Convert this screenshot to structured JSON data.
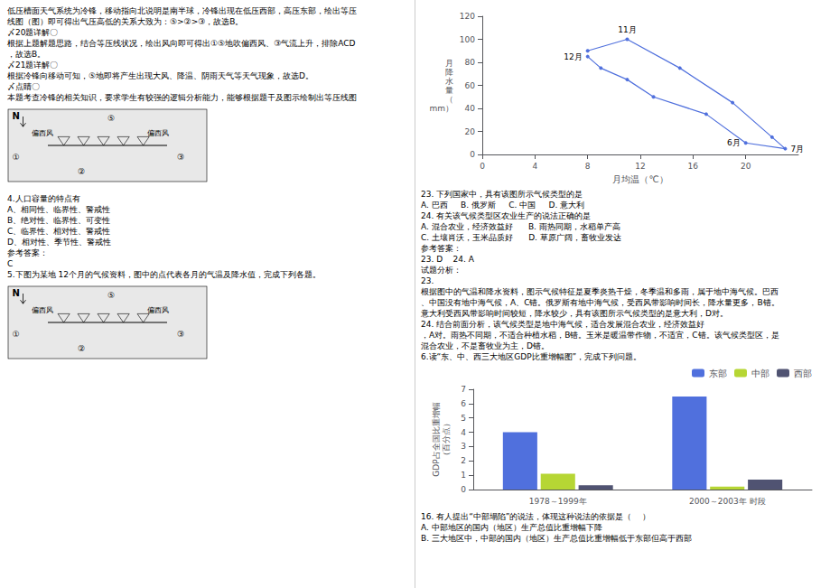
{
  "chart_data": [
    {
      "type": "line",
      "xlabel": "月均温（℃）",
      "ylabel": "月\n降\n水\n量\n（\nmm）",
      "x": [
        8,
        9,
        11,
        13,
        17,
        20,
        23,
        22,
        19,
        15,
        11,
        8
      ],
      "values": [
        85,
        75,
        65,
        50,
        35,
        10,
        5,
        15,
        45,
        75,
        100,
        90
      ],
      "marker": "circle",
      "line_style": "solid",
      "xlim": [
        0,
        24
      ],
      "ylim": [
        0,
        120
      ],
      "xticks": [
        0,
        4,
        8,
        12,
        16,
        20
      ],
      "yticks": [
        0,
        20,
        40,
        60,
        80,
        100,
        120
      ],
      "grid": false,
      "annotations": [
        {
          "text": "12月",
          "x": 8,
          "y": 85
        },
        {
          "text": "11月",
          "x": 11,
          "y": 100
        },
        {
          "text": "6月",
          "x": 20,
          "y": 10
        },
        {
          "text": "7月",
          "x": 23,
          "y": 5
        }
      ]
    },
    {
      "type": "bar",
      "ylabel": "GDP占全国比重增幅\n（百分点）",
      "categories": [
        "1978～1999年",
        "2000～2003年 时段"
      ],
      "series": [
        {
          "name": "东部",
          "values": [
            4.0,
            6.5
          ]
        },
        {
          "name": "中部",
          "values": [
            1.1,
            0.2
          ]
        },
        {
          "name": "西部",
          "values": [
            0.3,
            0.7
          ]
        }
      ],
      "ylim": [
        0,
        7
      ],
      "yticks": [
        0,
        1,
        2,
        3,
        4,
        5,
        6,
        7
      ],
      "grid": false,
      "legend": "upper right"
    }
  ],
  "page_texts": [
    [
      "低压槽面天气系统为冷锋，移动指向北说明是南半球，冷锋出现在低压西部，高压东部，绘出等压",
      "线图（图）即可得出气压高低的关系大致为：⑤>②>③，故选B。",
      "〆20题详解〇",
      "根据上题解题思路，结合等压线状况，绘出风向即可得出①⑤地吹偏西风、③气流上升，排除ACD",
      "，故选B。",
      "〆21题详解〇",
      "根据冷锋向移动可知，⑤地即将产生出现大风、降温、阴雨天气等天气现象，故选D。",
      "〆点睛〇",
      "本题考查冷锋的相关知识，要求学生有较强的逻辑分析能力，能够根据题干及图示绘制出等压线图"
    ],
    [
      "4.人口容量的特点有",
      "A、相同性、临界性、警戒性",
      "B、绝对性、临界性、可变性",
      "C、临界性、相对性、警戒性",
      "D、相对性、季节性、警戒性",
      "参考答案：",
      "C",
      "5.下图为某地 12个月的气候资料，图中的点代表各月的气温及降水值，完成下列各题。"
    ],
    [
      "23. 下列国家中，具有该图所示气候类型的是",
      "A. 巴西     B. 俄罗斯     C. 中国     D. 意大利",
      "24. 有关该气候类型区农业生产的说法正确的是",
      "A. 混合农业，经济效益好      B. 雨热同期，水稻单产高",
      "C. 土壤肖沃，玉米品质好      D. 草原广阔，畜牧业发达",
      "参考答案：",
      "23. D    24. A",
      "试题分析：",
      "23.",
      "根据图中的气温和降水资料，图示气候特征是夏季炎热干燥，冬季温和多雨，属于地中海气候。巴西",
      "、中国没有地中海气候，A、C错。俄罗斯有地中海气候，受西风带影响时间长，降水量更多，B错。",
      "意大利受西风带影响时间较短，降水较少，具有该图所示气候类型的是意大利，D对。",
      "24. 结合前面分析，该气候类型是地中海气候，适合发展混合农业，经济效益好",
      "，A对。雨热不同期，不适合种植水稻，B错。玉米是暖温带作物，不适宜，C错。该气候类型区，是",
      "混合农业，不是畜牧业为主，D错。",
      "6.读“东、中、西三大地区GDP比重增幅图”，完成下列问题。"
    ],
    [
      "16. 有人提出“中部塌陷”的说法，体现这种说法的依据是（    ）",
      "A. 中部地区的国内（地区）生产总值比重增幅下降",
      "B. 三大地区中，中部的国内（地区）生产总值比重增幅低于东部但高于西部"
    ]
  ],
  "maps": [
    {
      "labels": [
        "N",
        "偏西风",
        "偏西风",
        "①",
        "②",
        "③",
        "⑤"
      ]
    },
    {
      "labels": [
        "N",
        "偏西风",
        "偏西风",
        "①",
        "②",
        "③",
        "⑤"
      ]
    }
  ]
}
